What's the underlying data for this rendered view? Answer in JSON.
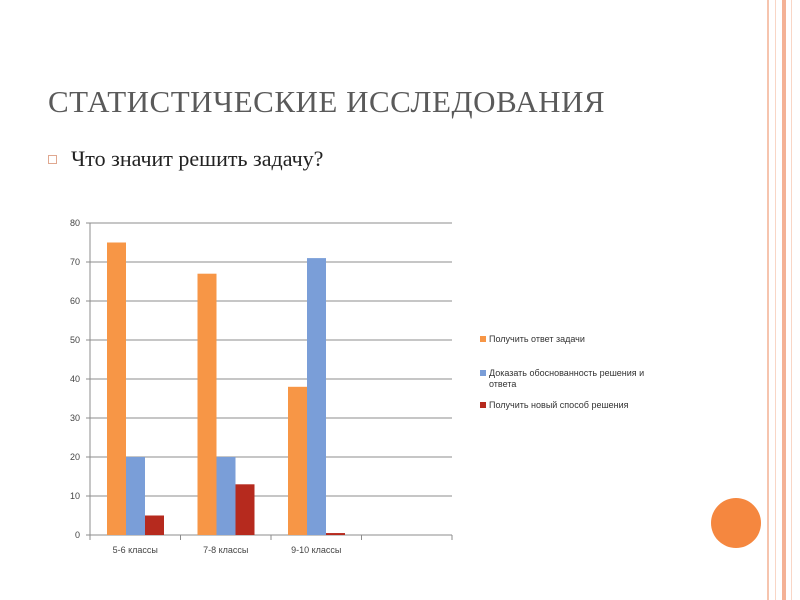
{
  "slide": {
    "title": "СТАТИСТИЧЕСКИЕ ИССЛЕДОВАНИЯ",
    "bullet": "Что значит решить задачу?"
  },
  "colors": {
    "series1": "#f79646",
    "series2": "#7a9ed8",
    "series3": "#b62a1e",
    "border": "#f4b9a0",
    "accent_circle": "#f5873f"
  },
  "chart_data": {
    "type": "bar",
    "categories": [
      "5-6 классы",
      "7-8 классы",
      "9-10 классы",
      ""
    ],
    "series": [
      {
        "name": "Получить ответ задачи",
        "values": [
          75,
          67,
          38,
          null
        ]
      },
      {
        "name": "Доказать обоснованность решения и ответа",
        "values": [
          20,
          20,
          71,
          null
        ]
      },
      {
        "name": "Получить новый способ решения",
        "values": [
          5,
          13,
          0.5,
          null
        ]
      }
    ],
    "yticks": [
      0,
      10,
      20,
      30,
      40,
      50,
      60,
      70,
      80
    ],
    "ylim": [
      0,
      80
    ],
    "grid": true,
    "legend": "right"
  }
}
